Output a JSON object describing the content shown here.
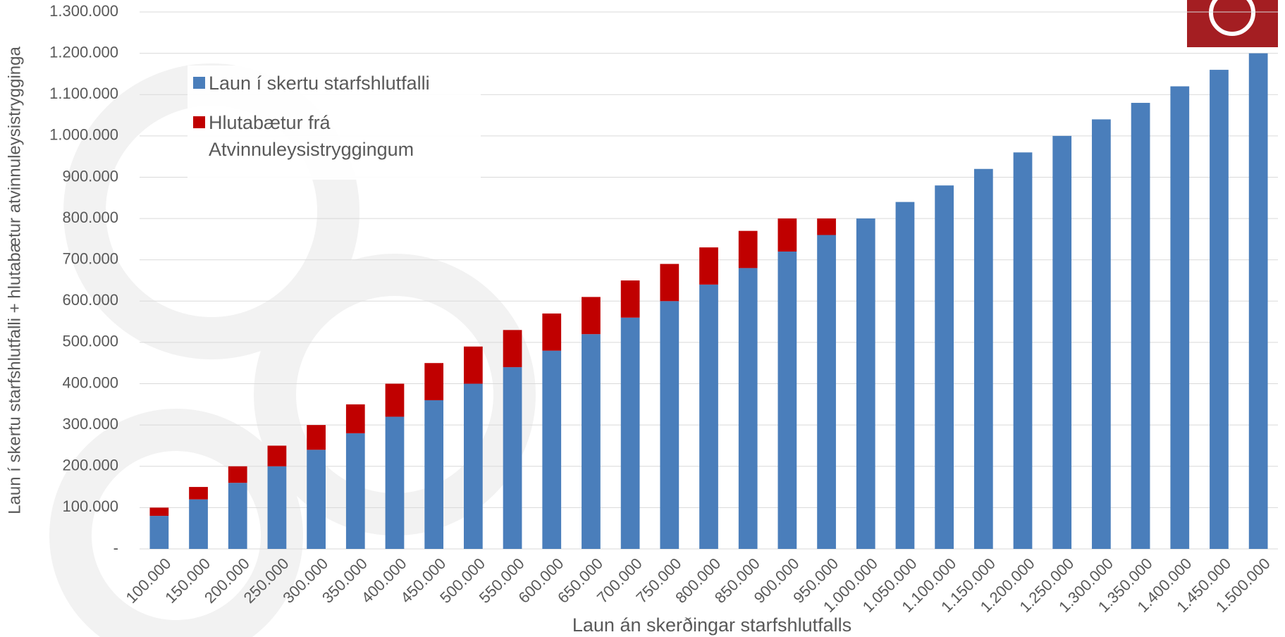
{
  "chart_data": {
    "type": "stacked-bar",
    "x_label": "Laun án skerðingar starfshlutfalls",
    "y_label": "Laun í skertu starfshlutfalli + hlutabætur atvinnuleysistrygginga",
    "categories": [
      "100.000",
      "150.000",
      "200.000",
      "250.000",
      "300.000",
      "350.000",
      "400.000",
      "450.000",
      "500.000",
      "550.000",
      "600.000",
      "650.000",
      "700.000",
      "750.000",
      "800.000",
      "850.000",
      "900.000",
      "950.000",
      "1.000.000",
      "1.050.000",
      "1.100.000",
      "1.150.000",
      "1.200.000",
      "1.250.000",
      "1.300.000",
      "1.350.000",
      "1.400.000",
      "1.450.000",
      "1.500.000"
    ],
    "series": [
      {
        "name": "Laun í skertu starfshlutfalli",
        "color": "#4a7ebb",
        "values": [
          80000,
          120000,
          160000,
          200000,
          240000,
          280000,
          320000,
          360000,
          400000,
          440000,
          480000,
          520000,
          560000,
          600000,
          640000,
          680000,
          720000,
          760000,
          800000,
          840000,
          880000,
          920000,
          960000,
          1000000,
          1040000,
          1080000,
          1120000,
          1160000,
          1200000
        ]
      },
      {
        "name": "Hlutabætur frá Atvinnuleysistryggingum",
        "color": "#c00000",
        "values": [
          20000,
          30000,
          40000,
          50000,
          60000,
          70000,
          80000,
          90000,
          90000,
          90000,
          90000,
          90000,
          90000,
          90000,
          90000,
          90000,
          80000,
          40000,
          0,
          0,
          0,
          0,
          0,
          0,
          0,
          0,
          0,
          0,
          0
        ]
      }
    ],
    "ylim": [
      0,
      1300000
    ],
    "yticks": [
      {
        "value": 0,
        "label": "-"
      },
      {
        "value": 100000,
        "label": "100.000"
      },
      {
        "value": 200000,
        "label": "200.000"
      },
      {
        "value": 300000,
        "label": "300.000"
      },
      {
        "value": 400000,
        "label": "400.000"
      },
      {
        "value": 500000,
        "label": "500.000"
      },
      {
        "value": 600000,
        "label": "600.000"
      },
      {
        "value": 700000,
        "label": "700.000"
      },
      {
        "value": 800000,
        "label": "800.000"
      },
      {
        "value": 900000,
        "label": "900.000"
      },
      {
        "value": 1000000,
        "label": "1.000.000"
      },
      {
        "value": 1100000,
        "label": "1.100.000"
      },
      {
        "value": 1200000,
        "label": "1.200.000"
      },
      {
        "value": 1300000,
        "label": "1.300.000"
      }
    ],
    "grid": true
  }
}
